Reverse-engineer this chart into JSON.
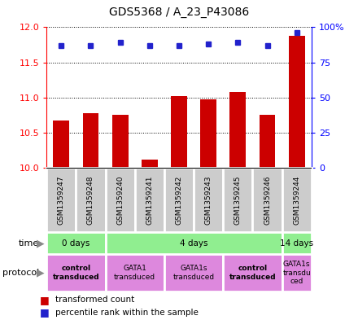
{
  "title": "GDS5368 / A_23_P43086",
  "samples": [
    "GSM1359247",
    "GSM1359248",
    "GSM1359240",
    "GSM1359241",
    "GSM1359242",
    "GSM1359243",
    "GSM1359245",
    "GSM1359246",
    "GSM1359244"
  ],
  "transformed_counts": [
    10.68,
    10.78,
    10.75,
    10.12,
    11.02,
    10.98,
    11.08,
    10.75,
    11.88
  ],
  "percentile_ranks": [
    87,
    87,
    89,
    87,
    87,
    88,
    89,
    87,
    96
  ],
  "ylim_left": [
    10,
    12
  ],
  "ylim_right": [
    0,
    100
  ],
  "yticks_left": [
    10,
    10.5,
    11,
    11.5,
    12
  ],
  "yticks_right": [
    0,
    25,
    50,
    75,
    100
  ],
  "ytick_right_labels": [
    "0",
    "25",
    "50",
    "75",
    "100%"
  ],
  "bar_color": "#CC0000",
  "dot_color": "#2222CC",
  "bar_width": 0.55,
  "time_groups": [
    {
      "label": "0 days",
      "start": 0,
      "end": 2,
      "color": "#90EE90"
    },
    {
      "label": "4 days",
      "start": 2,
      "end": 8,
      "color": "#90EE90"
    },
    {
      "label": "14 days",
      "start": 8,
      "end": 9,
      "color": "#90EE90"
    }
  ],
  "protocol_groups": [
    {
      "label": "control\ntransduced",
      "start": 0,
      "end": 2,
      "color": "#DD88DD",
      "bold": true
    },
    {
      "label": "GATA1\ntransduced",
      "start": 2,
      "end": 4,
      "color": "#DD88DD",
      "bold": false
    },
    {
      "label": "GATA1s\ntransduced",
      "start": 4,
      "end": 6,
      "color": "#DD88DD",
      "bold": false
    },
    {
      "label": "control\ntransduced",
      "start": 6,
      "end": 8,
      "color": "#DD88DD",
      "bold": true
    },
    {
      "label": "GATA1s\ntransdu\nced",
      "start": 8,
      "end": 9,
      "color": "#DD88DD",
      "bold": false
    }
  ],
  "sample_box_color": "#CCCCCC",
  "legend_red_label": "transformed count",
  "legend_blue_label": "percentile rank within the sample",
  "base_value": 10,
  "fig_width": 4.4,
  "fig_height": 3.93,
  "fig_dpi": 100
}
